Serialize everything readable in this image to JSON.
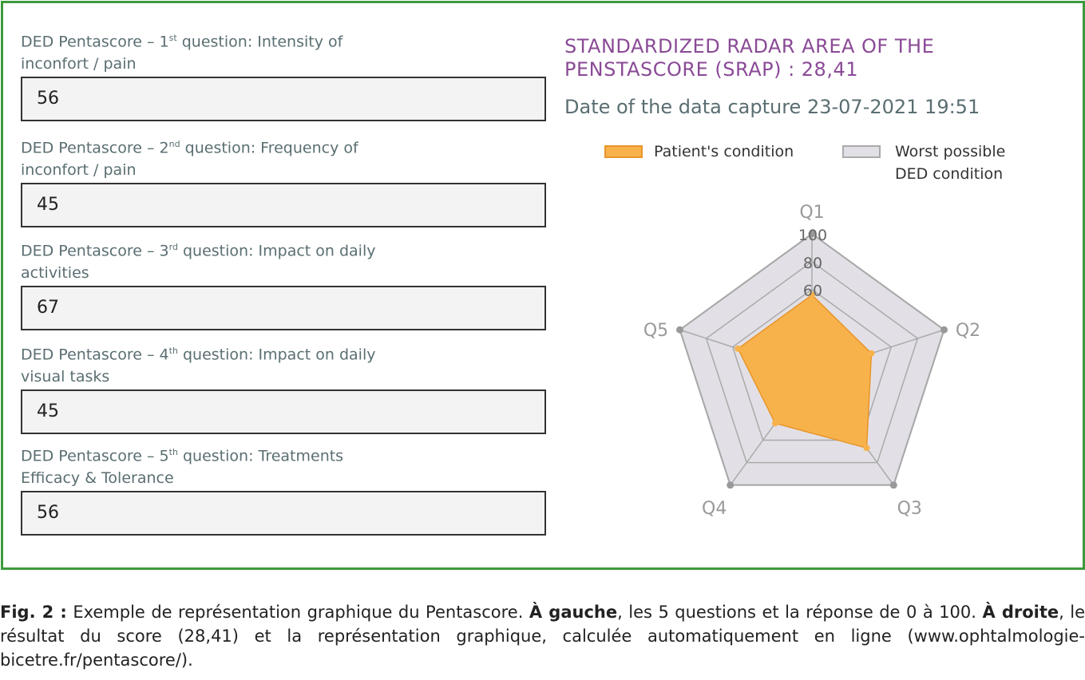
{
  "questions": [
    {
      "label_pre": "DED Pentascore – 1",
      "label_sup": "st",
      "label_post": " question: Intensity of\ninconfort / pain",
      "value": "56"
    },
    {
      "label_pre": "DED Pentascore – 2",
      "label_sup": "nd",
      "label_post": " question: Frequency of\ninconfort / pain",
      "value": "45"
    },
    {
      "label_pre": "DED Pentascore – 3",
      "label_sup": "rd",
      "label_post": " question: Impact on daily\nactivities",
      "value": "67"
    },
    {
      "label_pre": "DED Pentascore – 4",
      "label_sup": "th",
      "label_post": " question: Impact on daily\nvisual tasks",
      "value": "45"
    },
    {
      "label_pre": "DED Pentascore – 5",
      "label_sup": "th",
      "label_post": " question: Treatments\nEfficacy & Tolerance",
      "value": "56"
    }
  ],
  "result": {
    "title": "STANDARDIZED RADAR AREA OF THE PENSTASCORE (SRAP) : 28,41",
    "date": "Date of the data capture 23-07-2021 19:51"
  },
  "chart_data": {
    "type": "radar",
    "categories": [
      "Q1",
      "Q2",
      "Q3",
      "Q4",
      "Q5"
    ],
    "range": [
      0,
      100
    ],
    "ticks": [
      60,
      80,
      100
    ],
    "tick_labels": [
      "60",
      "80",
      "100"
    ],
    "series": [
      {
        "name": "Patient's condition",
        "values": [
          56,
          45,
          67,
          45,
          56
        ],
        "color": "#f8b24c"
      },
      {
        "name": "Worst possible DED condition",
        "values": [
          100,
          100,
          100,
          100,
          100
        ],
        "color": "#e2e0e6"
      }
    ],
    "legend": "top"
  },
  "caption": {
    "fig": "Fig. 2 :",
    "t1": " Exemple de représentation graphique du Pentascore. ",
    "b1": "À gauche",
    "t2": ", les 5 questions et la réponse de 0 à 100. ",
    "b2": "À droite",
    "t3": ", le résultat du score (28,41) et la représentation graphique, calculée automatiquement en ligne (www.ophtalmologie-bicetre.fr/pentascore/)."
  }
}
